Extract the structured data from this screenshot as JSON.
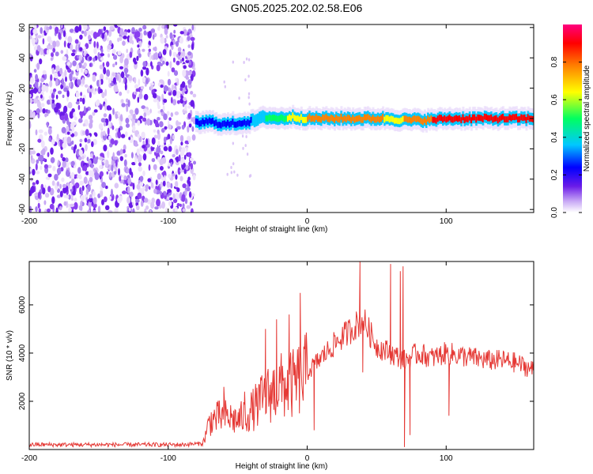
{
  "title": "GN05.2025.202.02.58.E06",
  "colors": {
    "noise": "#8a3ff0",
    "line": "#e53935",
    "colormap": [
      "#ffffff",
      "#c8a8f5",
      "#6a1be8",
      "#0000ff",
      "#00c8ff",
      "#00ff60",
      "#ffff00",
      "#ff8000",
      "#ff0000",
      "#ff007f"
    ]
  },
  "chart_data": [
    {
      "type": "heatmap",
      "xlabel": "Height of straight line (km)",
      "ylabel": "Frequency (Hz)",
      "xlim": [
        -200,
        163
      ],
      "ylim": [
        -62,
        62
      ],
      "xticks": [
        -200,
        -100,
        0,
        100
      ],
      "yticks": [
        -60,
        -40,
        -20,
        0,
        20,
        40,
        60
      ],
      "colorbar": {
        "label": "Normalized spectral amplitude",
        "range": [
          0,
          1
        ],
        "ticks": [
          "0.0",
          "0.2",
          "0.4",
          "0.6",
          "0.8"
        ]
      },
      "noise_region_x": [
        -200,
        -81
      ],
      "signal_frequency_track": {
        "x": [
          -80,
          -70,
          -60,
          -50,
          -40,
          -30,
          -20,
          -10,
          0,
          10,
          20,
          30,
          40,
          50,
          60,
          70,
          80,
          90,
          100,
          120,
          140,
          163
        ],
        "freq": [
          -3,
          -2,
          -4,
          -3,
          -2,
          1,
          0,
          1,
          0,
          0,
          0,
          0,
          0,
          0,
          0,
          -1,
          -1,
          -1,
          0,
          0,
          0,
          0
        ],
        "amplitude": [
          0.2,
          0.25,
          0.3,
          0.3,
          0.35,
          0.5,
          0.6,
          0.7,
          0.8,
          0.85,
          0.85,
          0.85,
          0.85,
          0.9,
          0.7,
          0.8,
          0.85,
          0.9,
          0.95,
          0.95,
          0.95,
          0.95
        ]
      }
    },
    {
      "type": "line",
      "xlabel": "Height of straight line (km)",
      "ylabel": "SNR (10 * v/v)",
      "xlim": [
        -200,
        163
      ],
      "ylim": [
        0,
        7800
      ],
      "xticks": [
        -200,
        -100,
        0,
        100
      ],
      "yticks": [
        2000,
        4000,
        6000
      ],
      "envelope": {
        "x": [
          -200,
          -90,
          -75,
          -70,
          -60,
          -50,
          -40,
          -30,
          -20,
          -10,
          0,
          10,
          20,
          30,
          40,
          50,
          60,
          70,
          80,
          90,
          100,
          110,
          120,
          130,
          140,
          150,
          163
        ],
        "y": [
          200,
          200,
          250,
          1200,
          1400,
          1200,
          1600,
          2200,
          2600,
          2700,
          3200,
          3800,
          4400,
          4900,
          5400,
          4300,
          4000,
          3700,
          4000,
          3800,
          4000,
          3900,
          3800,
          3700,
          3700,
          3600,
          3300
        ]
      },
      "spikes": [
        {
          "x": -60,
          "y": 2600
        },
        {
          "x": -45,
          "y": 2400
        },
        {
          "x": -30,
          "y": 5000
        },
        {
          "x": -22,
          "y": 5400
        },
        {
          "x": -13,
          "y": 5600
        },
        {
          "x": -5,
          "y": 6500
        },
        {
          "x": 38,
          "y": 7800
        },
        {
          "x": 60,
          "y": 7700
        },
        {
          "x": 67,
          "y": 7400
        },
        {
          "x": 69,
          "y": 7600
        }
      ],
      "dips": [
        {
          "x": 5,
          "y": 800
        },
        {
          "x": 40,
          "y": 3200
        },
        {
          "x": 70,
          "y": 100
        },
        {
          "x": 74,
          "y": 600
        },
        {
          "x": 102,
          "y": 1400
        }
      ]
    }
  ]
}
